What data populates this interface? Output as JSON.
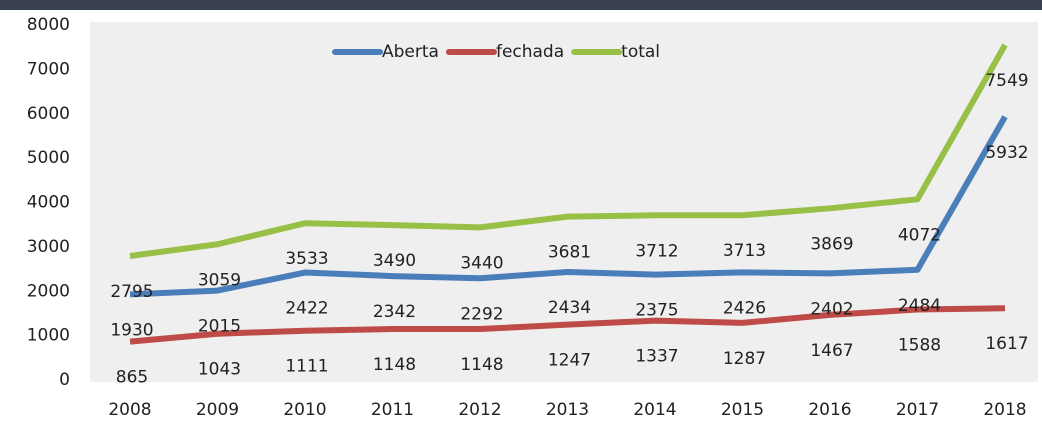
{
  "chart_data": {
    "type": "line",
    "categories": [
      "2008",
      "2009",
      "2010",
      "2011",
      "2012",
      "2013",
      "2014",
      "2015",
      "2016",
      "2017",
      "2018"
    ],
    "series": [
      {
        "name": "Aberta",
        "color": "#4a7ebb",
        "values": [
          1930,
          2015,
          2422,
          2342,
          2292,
          2434,
          2375,
          2426,
          2402,
          2484,
          5932
        ]
      },
      {
        "name": "fechada",
        "color": "#be4b48",
        "values": [
          865,
          1043,
          1111,
          1148,
          1148,
          1247,
          1337,
          1287,
          1467,
          1588,
          1617
        ]
      },
      {
        "name": "total",
        "color": "#98c047",
        "values": [
          2795,
          3059,
          3533,
          3490,
          3440,
          3681,
          3712,
          3713,
          3869,
          4072,
          7549
        ]
      }
    ],
    "ylim": [
      0,
      8000
    ],
    "yticks": [
      0,
      1000,
      2000,
      3000,
      4000,
      5000,
      6000,
      7000,
      8000
    ],
    "legend": "top",
    "grid": false
  }
}
